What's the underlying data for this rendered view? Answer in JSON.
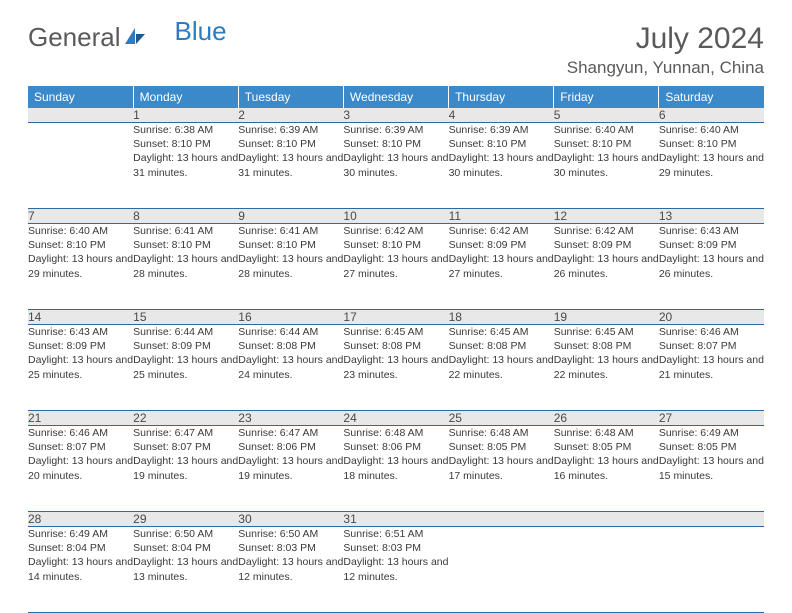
{
  "logo": {
    "part1": "General",
    "part2": "Blue"
  },
  "title": "July 2024",
  "location": "Shangyun, Yunnan, China",
  "colors": {
    "header_bg": "#3b89c9",
    "header_text": "#ffffff",
    "daynum_bg": "#e8e8e8",
    "border": "#2d6aa3",
    "text": "#3a3a3a",
    "title_text": "#5a5a5a"
  },
  "weekdays": [
    "Sunday",
    "Monday",
    "Tuesday",
    "Wednesday",
    "Thursday",
    "Friday",
    "Saturday"
  ],
  "weeks": [
    [
      null,
      {
        "n": "1",
        "sr": "6:38 AM",
        "ss": "8:10 PM",
        "dl": "13 hours and 31 minutes."
      },
      {
        "n": "2",
        "sr": "6:39 AM",
        "ss": "8:10 PM",
        "dl": "13 hours and 31 minutes."
      },
      {
        "n": "3",
        "sr": "6:39 AM",
        "ss": "8:10 PM",
        "dl": "13 hours and 30 minutes."
      },
      {
        "n": "4",
        "sr": "6:39 AM",
        "ss": "8:10 PM",
        "dl": "13 hours and 30 minutes."
      },
      {
        "n": "5",
        "sr": "6:40 AM",
        "ss": "8:10 PM",
        "dl": "13 hours and 30 minutes."
      },
      {
        "n": "6",
        "sr": "6:40 AM",
        "ss": "8:10 PM",
        "dl": "13 hours and 29 minutes."
      }
    ],
    [
      {
        "n": "7",
        "sr": "6:40 AM",
        "ss": "8:10 PM",
        "dl": "13 hours and 29 minutes."
      },
      {
        "n": "8",
        "sr": "6:41 AM",
        "ss": "8:10 PM",
        "dl": "13 hours and 28 minutes."
      },
      {
        "n": "9",
        "sr": "6:41 AM",
        "ss": "8:10 PM",
        "dl": "13 hours and 28 minutes."
      },
      {
        "n": "10",
        "sr": "6:42 AM",
        "ss": "8:10 PM",
        "dl": "13 hours and 27 minutes."
      },
      {
        "n": "11",
        "sr": "6:42 AM",
        "ss": "8:09 PM",
        "dl": "13 hours and 27 minutes."
      },
      {
        "n": "12",
        "sr": "6:42 AM",
        "ss": "8:09 PM",
        "dl": "13 hours and 26 minutes."
      },
      {
        "n": "13",
        "sr": "6:43 AM",
        "ss": "8:09 PM",
        "dl": "13 hours and 26 minutes."
      }
    ],
    [
      {
        "n": "14",
        "sr": "6:43 AM",
        "ss": "8:09 PM",
        "dl": "13 hours and 25 minutes."
      },
      {
        "n": "15",
        "sr": "6:44 AM",
        "ss": "8:09 PM",
        "dl": "13 hours and 25 minutes."
      },
      {
        "n": "16",
        "sr": "6:44 AM",
        "ss": "8:08 PM",
        "dl": "13 hours and 24 minutes."
      },
      {
        "n": "17",
        "sr": "6:45 AM",
        "ss": "8:08 PM",
        "dl": "13 hours and 23 minutes."
      },
      {
        "n": "18",
        "sr": "6:45 AM",
        "ss": "8:08 PM",
        "dl": "13 hours and 22 minutes."
      },
      {
        "n": "19",
        "sr": "6:45 AM",
        "ss": "8:08 PM",
        "dl": "13 hours and 22 minutes."
      },
      {
        "n": "20",
        "sr": "6:46 AM",
        "ss": "8:07 PM",
        "dl": "13 hours and 21 minutes."
      }
    ],
    [
      {
        "n": "21",
        "sr": "6:46 AM",
        "ss": "8:07 PM",
        "dl": "13 hours and 20 minutes."
      },
      {
        "n": "22",
        "sr": "6:47 AM",
        "ss": "8:07 PM",
        "dl": "13 hours and 19 minutes."
      },
      {
        "n": "23",
        "sr": "6:47 AM",
        "ss": "8:06 PM",
        "dl": "13 hours and 19 minutes."
      },
      {
        "n": "24",
        "sr": "6:48 AM",
        "ss": "8:06 PM",
        "dl": "13 hours and 18 minutes."
      },
      {
        "n": "25",
        "sr": "6:48 AM",
        "ss": "8:05 PM",
        "dl": "13 hours and 17 minutes."
      },
      {
        "n": "26",
        "sr": "6:48 AM",
        "ss": "8:05 PM",
        "dl": "13 hours and 16 minutes."
      },
      {
        "n": "27",
        "sr": "6:49 AM",
        "ss": "8:05 PM",
        "dl": "13 hours and 15 minutes."
      }
    ],
    [
      {
        "n": "28",
        "sr": "6:49 AM",
        "ss": "8:04 PM",
        "dl": "13 hours and 14 minutes."
      },
      {
        "n": "29",
        "sr": "6:50 AM",
        "ss": "8:04 PM",
        "dl": "13 hours and 13 minutes."
      },
      {
        "n": "30",
        "sr": "6:50 AM",
        "ss": "8:03 PM",
        "dl": "13 hours and 12 minutes."
      },
      {
        "n": "31",
        "sr": "6:51 AM",
        "ss": "8:03 PM",
        "dl": "13 hours and 12 minutes."
      },
      null,
      null,
      null
    ]
  ],
  "labels": {
    "sunrise": "Sunrise:",
    "sunset": "Sunset:",
    "daylight": "Daylight:"
  }
}
